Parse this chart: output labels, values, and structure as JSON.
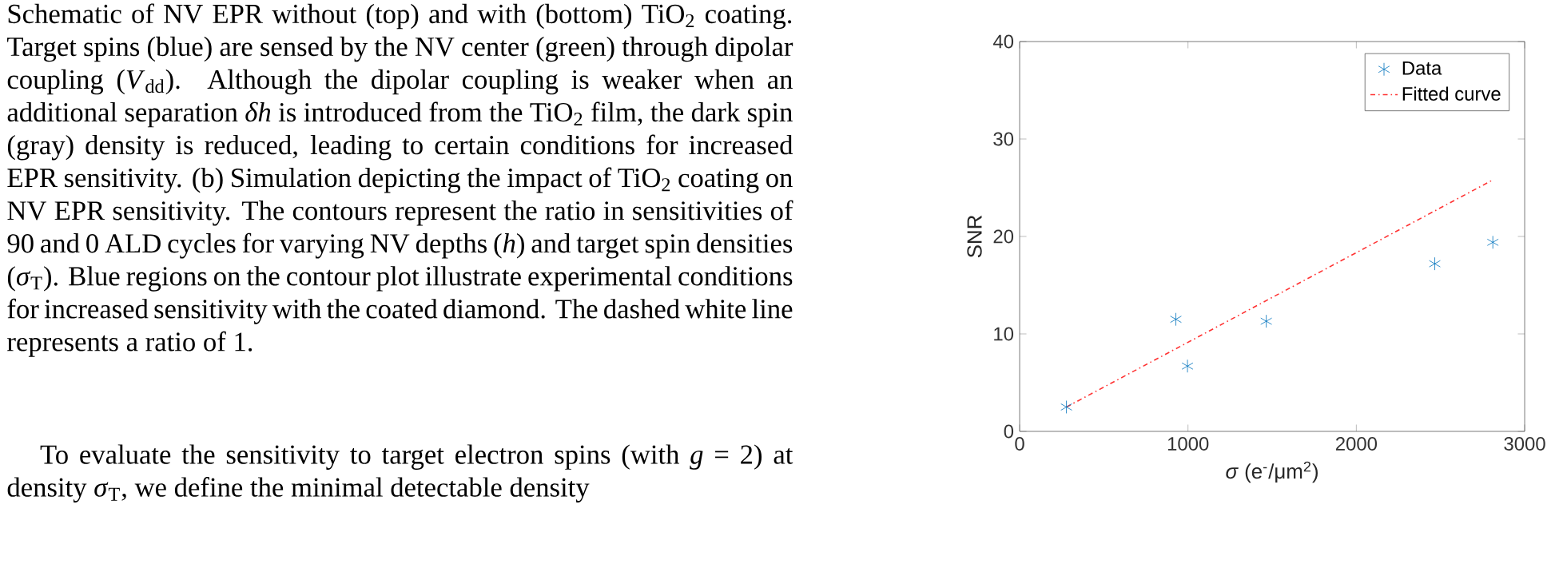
{
  "chart_data": {
    "type": "scatter",
    "xlabel": "*σ* (e$^{-}$/μm$^{2}$)",
    "ylabel": "SNR",
    "xlim": [
      0,
      3000
    ],
    "xticks": [
      0,
      1000,
      2000,
      3000
    ],
    "ylim": [
      0,
      40
    ],
    "yticks": [
      0,
      10,
      20,
      30,
      40
    ],
    "legend": "top right",
    "series": [
      {
        "name": "Data",
        "marker": "cross",
        "color": "#0072bd",
        "x": [
          278,
          928,
          997,
          1465,
          2466,
          2811
        ],
        "values": [
          2.5,
          11.5,
          6.7,
          11.3,
          17.2,
          19.4
        ]
      },
      {
        "name": "Fitted curve",
        "type": "line",
        "line_style": "dashdot",
        "color": "#ff3333",
        "x": [
          278,
          2811
        ],
        "values": [
          2.5,
          25.8
        ]
      }
    ],
    "annotations": [
      "Schematic of NV EPR without (top) and with (bottom) TiO$_{2}$ coating. Target spins (blue) are sensed by the NV center (green) through dipolar coupling (*V*$_{dd}$). Although the dipolar coupling is weaker when an additional separation *δh* is introduced from the TiO$_{2}$ film, the dark spin (gray) density is reduced, leading to certain conditions for increased EPR sensitivity. (b) Simulation depicting the impact of TiO$_{2}$ coating on NV EPR sensitivity. The contours represent the ratio in sensitivities of 90 and 0 ALD cycles for varying NV depths (*h*) and target spin densities (*σ*$_{T}$). Blue regions on the contour plot illustrate experimental conditions for increased sensitivity with the coated diamond. The dashed white line represents a ratio of 1.",
      "To evaluate the sensitivity to target electron spins (with *g* = 2) at density *σ*$_{T}$, we define the minimal detectable density"
    ]
  }
}
